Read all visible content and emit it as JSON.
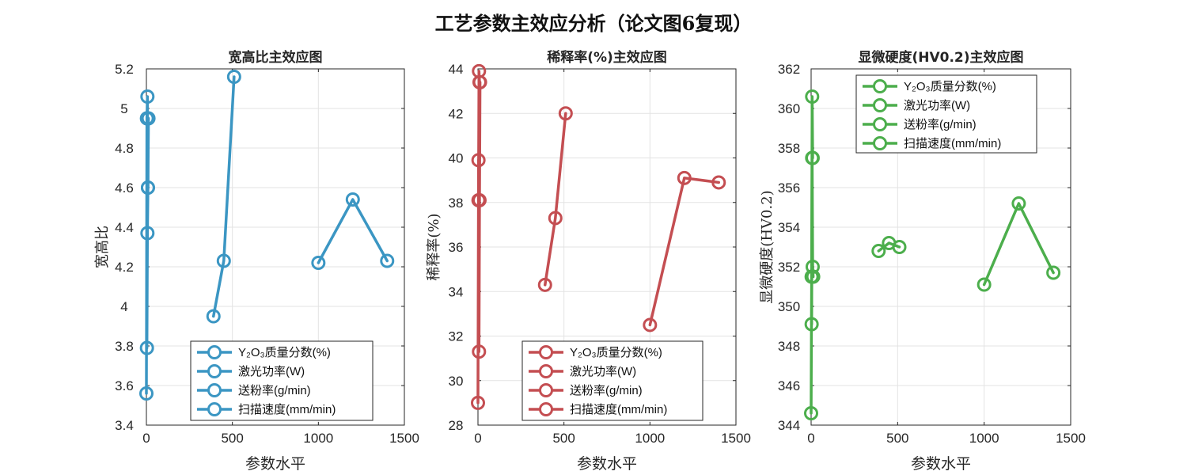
{
  "figure_title": "工艺参数主效应分析（论文图6复现）",
  "chart_data": [
    {
      "type": "line",
      "title": "宽高比主效应图",
      "xlabel": "参数水平",
      "ylabel": "宽高比",
      "xlim": [
        0,
        1500
      ],
      "ylim": [
        3.4,
        5.2
      ],
      "xticks": [
        0,
        500,
        1000,
        1500
      ],
      "xtick_labels": [
        "0",
        "500",
        "1000",
        "1500"
      ],
      "yticks": [
        3.4,
        3.6,
        3.8,
        4,
        4.2,
        4.4,
        4.6,
        4.8,
        5,
        5.2
      ],
      "ytick_labels": [
        "3.4",
        "3.6",
        "3.8",
        "4",
        "4.2",
        "4.4",
        "4.6",
        "4.8",
        "5",
        "5.2"
      ],
      "grid": true,
      "color": "#3b96c3",
      "legend_location": "bottom-right",
      "series": [
        {
          "name": "Y₂O₃质量分数(%)",
          "x": [
            0,
            3,
            6,
            9
          ],
          "y": [
            3.56,
            4.95,
            5.06,
            4.6
          ]
        },
        {
          "name": "激光功率(W)",
          "x": [
            3,
            6,
            9,
            12
          ],
          "y": [
            3.79,
            4.37,
            4.6,
            4.95
          ]
        },
        {
          "name": "送粉率(g/min)",
          "x": [
            390,
            450,
            510
          ],
          "y": [
            3.95,
            4.23,
            5.16
          ]
        },
        {
          "name": "扫描速度(mm/min)",
          "x": [
            1000,
            1200,
            1400
          ],
          "y": [
            4.22,
            4.54,
            4.23
          ]
        }
      ]
    },
    {
      "type": "line",
      "title": "稀释率(%)主效应图",
      "xlabel": "参数水平",
      "ylabel": "稀释率(%)",
      "xlim": [
        0,
        1500
      ],
      "ylim": [
        28,
        44
      ],
      "xticks": [
        0,
        500,
        1000,
        1500
      ],
      "xtick_labels": [
        "0",
        "500",
        "1000",
        "1500"
      ],
      "yticks": [
        28,
        30,
        32,
        34,
        36,
        38,
        40,
        42,
        44
      ],
      "ytick_labels": [
        "28",
        "30",
        "32",
        "34",
        "36",
        "38",
        "40",
        "42",
        "44"
      ],
      "grid": true,
      "color": "#c44e52",
      "legend_location": "bottom-right",
      "series": [
        {
          "name": "Y₂O₃质量分数(%)",
          "x": [
            0,
            3,
            6,
            9
          ],
          "y": [
            29.0,
            38.1,
            43.9,
            43.4
          ]
        },
        {
          "name": "激光功率(W)",
          "x": [
            3,
            6,
            9,
            12
          ],
          "y": [
            39.9,
            31.3,
            38.1,
            43.4
          ]
        },
        {
          "name": "送粉率(g/min)",
          "x": [
            390,
            450,
            510
          ],
          "y": [
            34.3,
            37.3,
            42.0
          ]
        },
        {
          "name": "扫描速度(mm/min)",
          "x": [
            1000,
            1200,
            1400
          ],
          "y": [
            32.5,
            39.1,
            38.9
          ]
        }
      ]
    },
    {
      "type": "line",
      "title": "显微硬度(HV0.2)主效应图",
      "xlabel": "参数水平",
      "ylabel": "显微硬度(HV0.2)",
      "xlim": [
        0,
        1500
      ],
      "ylim": [
        344,
        362
      ],
      "xticks": [
        0,
        500,
        1000,
        1500
      ],
      "xtick_labels": [
        "0",
        "500",
        "1000",
        "1500"
      ],
      "yticks": [
        344,
        346,
        348,
        350,
        352,
        354,
        356,
        358,
        360,
        362
      ],
      "ytick_labels": [
        "344",
        "346",
        "348",
        "350",
        "352",
        "354",
        "356",
        "358",
        "360",
        "362"
      ],
      "grid": true,
      "color": "#4cae4c",
      "legend_location": "top-right",
      "series": [
        {
          "name": "Y₂O₃质量分数(%)",
          "x": [
            0,
            3,
            6,
            9
          ],
          "y": [
            344.6,
            351.5,
            360.6,
            357.5
          ]
        },
        {
          "name": "激光功率(W)",
          "x": [
            3,
            6,
            9,
            12
          ],
          "y": [
            349.1,
            357.5,
            352.0,
            351.5
          ]
        },
        {
          "name": "送粉率(g/min)",
          "x": [
            390,
            450,
            510
          ],
          "y": [
            352.8,
            353.2,
            353.0
          ]
        },
        {
          "name": "扫描速度(mm/min)",
          "x": [
            1000,
            1200,
            1400
          ],
          "y": [
            351.1,
            355.2,
            351.7
          ]
        }
      ]
    }
  ]
}
